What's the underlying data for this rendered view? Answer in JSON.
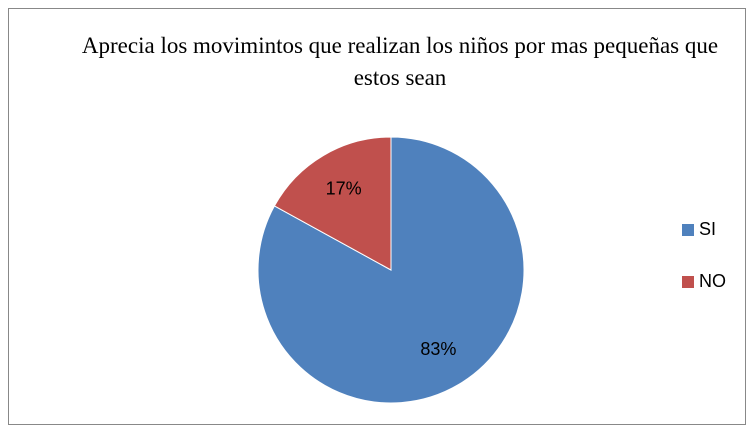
{
  "chart_data": {
    "type": "pie",
    "title": "Aprecia los movimintos que realizan los niños por mas pequeñas que estos sean",
    "categories": [
      "SI",
      "NO"
    ],
    "values": [
      83,
      17
    ],
    "value_labels": [
      "83%",
      "17%"
    ],
    "colors": [
      "#4f81bd",
      "#c0504d"
    ],
    "legend": "right"
  }
}
